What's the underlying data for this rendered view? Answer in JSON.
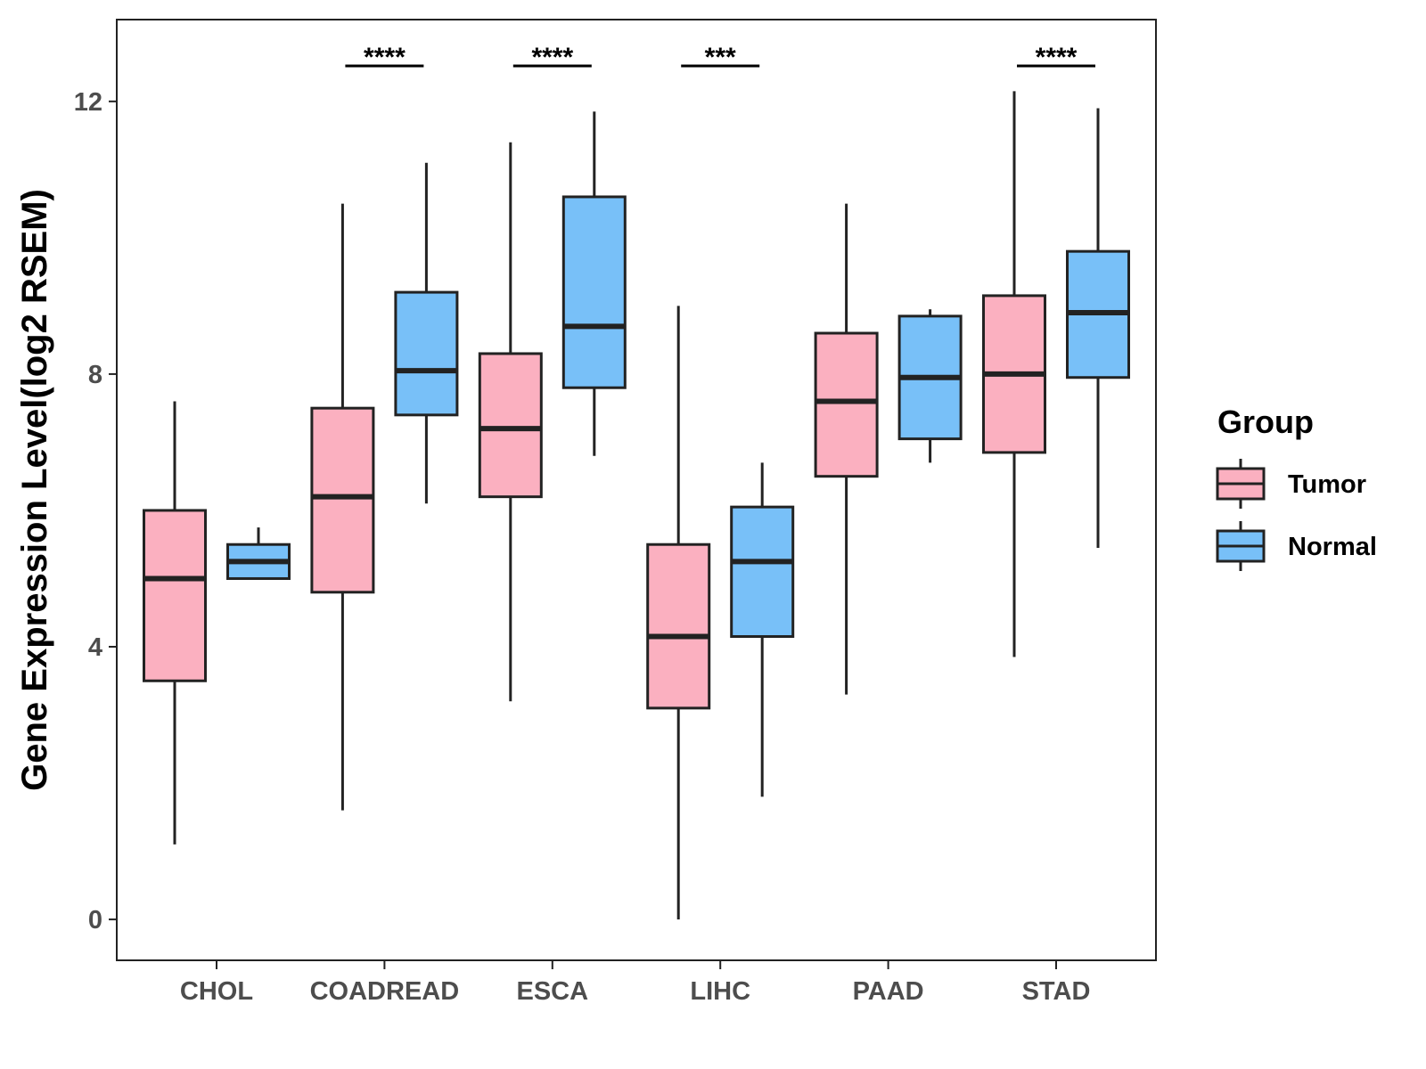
{
  "chart_data": {
    "type": "boxplot",
    "title": "",
    "xlabel": "",
    "ylabel": "Gene Expression Level(log2 RSEM)",
    "ylim": [
      -0.6,
      13.2
    ],
    "yticks": [
      0,
      4,
      8,
      12
    ],
    "categories": [
      "CHOL",
      "COADREAD",
      "ESCA",
      "LIHC",
      "PAAD",
      "STAD"
    ],
    "legend": {
      "title": "Group",
      "position": "right",
      "entries": [
        {
          "name": "Tumor",
          "color": "#fbb0c0"
        },
        {
          "name": "Normal",
          "color": "#78c0f8"
        }
      ]
    },
    "series": [
      {
        "name": "Tumor",
        "color": "#fbb0c0",
        "boxes": [
          {
            "min": 1.1,
            "q1": 3.5,
            "median": 5.0,
            "q3": 6.0,
            "max": 7.6
          },
          {
            "min": 1.6,
            "q1": 4.8,
            "median": 6.2,
            "q3": 7.5,
            "max": 10.5
          },
          {
            "min": 3.2,
            "q1": 6.2,
            "median": 7.2,
            "q3": 8.3,
            "max": 11.4
          },
          {
            "min": 0.0,
            "q1": 3.1,
            "median": 4.15,
            "q3": 5.5,
            "max": 9.0
          },
          {
            "min": 3.3,
            "q1": 6.5,
            "median": 7.6,
            "q3": 8.6,
            "max": 10.5
          },
          {
            "min": 3.85,
            "q1": 6.85,
            "median": 8.0,
            "q3": 9.15,
            "max": 12.15
          }
        ]
      },
      {
        "name": "Normal",
        "color": "#78c0f8",
        "boxes": [
          {
            "min": 5.0,
            "q1": 5.0,
            "median": 5.25,
            "q3": 5.5,
            "max": 5.75
          },
          {
            "min": 6.1,
            "q1": 7.4,
            "median": 8.05,
            "q3": 9.2,
            "max": 11.1
          },
          {
            "min": 6.8,
            "q1": 7.8,
            "median": 8.7,
            "q3": 10.6,
            "max": 11.85
          },
          {
            "min": 1.8,
            "q1": 4.15,
            "median": 5.25,
            "q3": 6.05,
            "max": 6.7
          },
          {
            "min": 6.7,
            "q1": 7.05,
            "median": 7.95,
            "q3": 8.85,
            "max": 8.95
          },
          {
            "min": 5.45,
            "q1": 7.95,
            "median": 8.9,
            "q3": 9.8,
            "max": 11.9
          }
        ]
      }
    ],
    "significance": [
      {
        "category": "COADREAD",
        "label": "****"
      },
      {
        "category": "ESCA",
        "label": "****"
      },
      {
        "category": "LIHC",
        "label": "***"
      },
      {
        "category": "STAD",
        "label": "****"
      }
    ]
  }
}
